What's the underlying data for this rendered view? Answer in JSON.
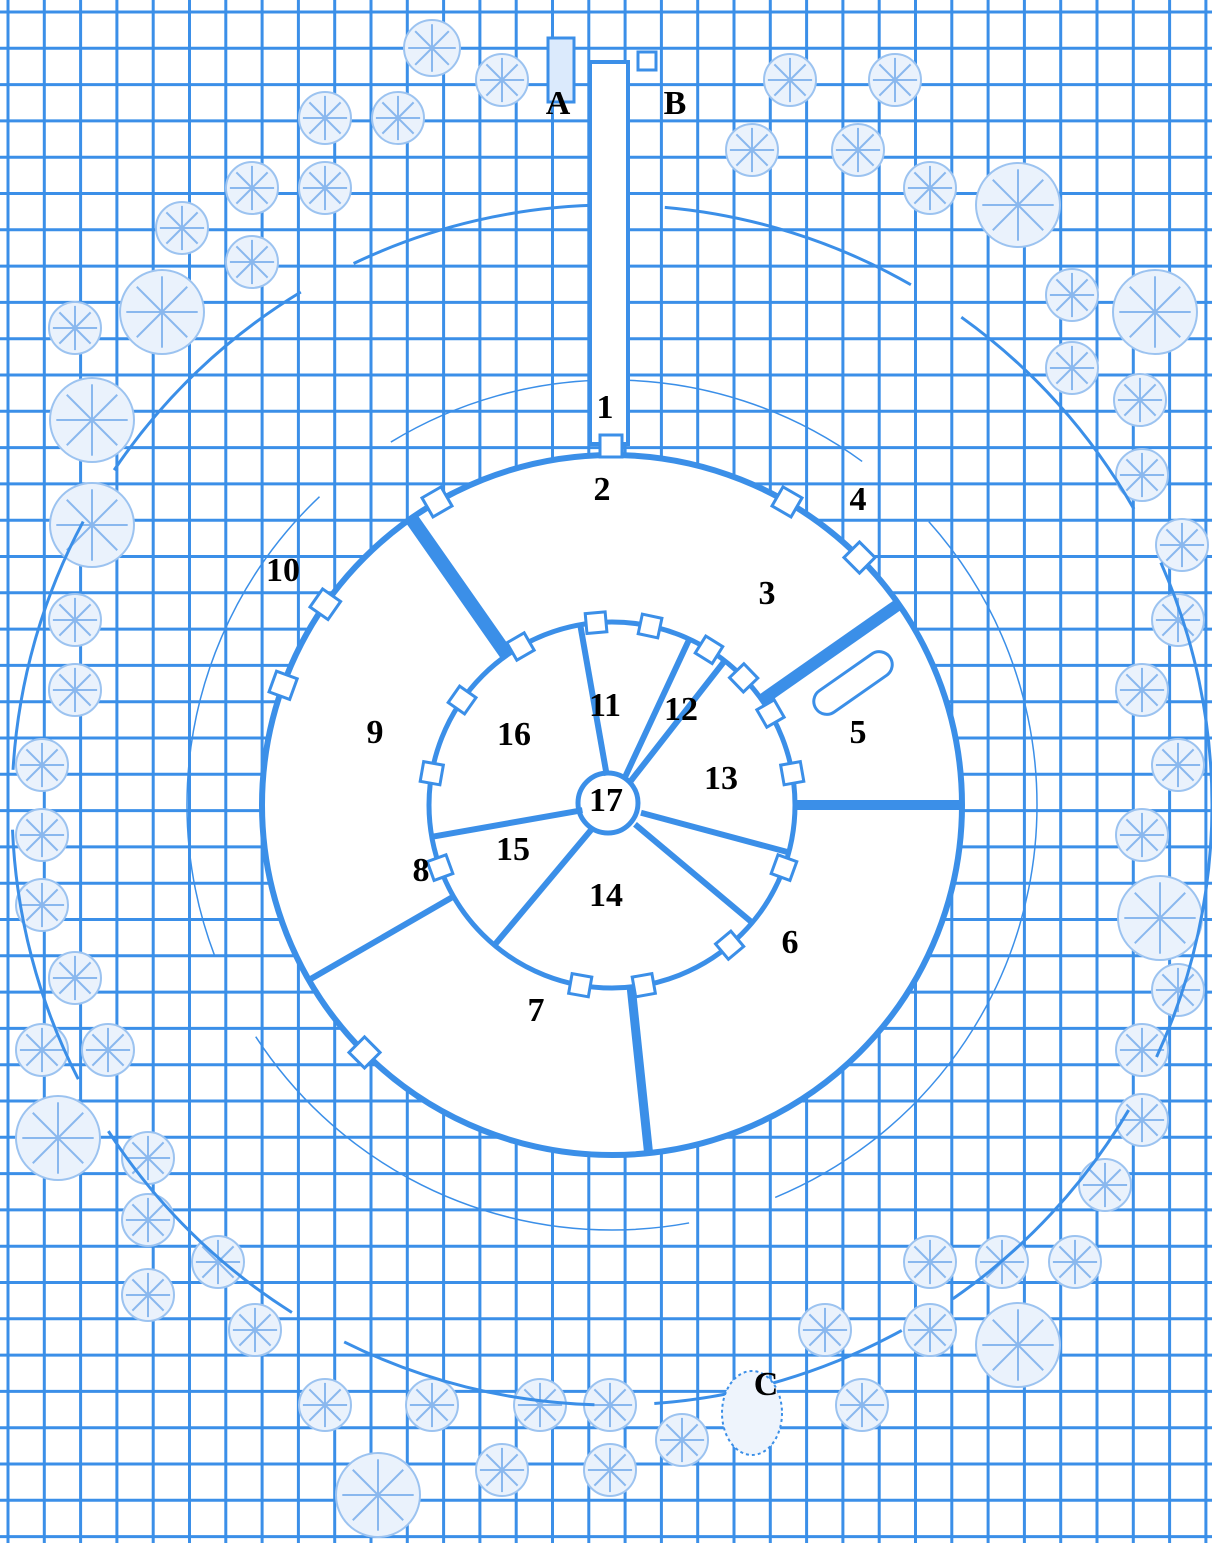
{
  "labels": [
    "1",
    "2",
    "3",
    "4",
    "5",
    "6",
    "7",
    "8",
    "9",
    "10",
    "11",
    "12",
    "13",
    "14",
    "15",
    "16",
    "17",
    "A",
    "B",
    "C"
  ]
}
